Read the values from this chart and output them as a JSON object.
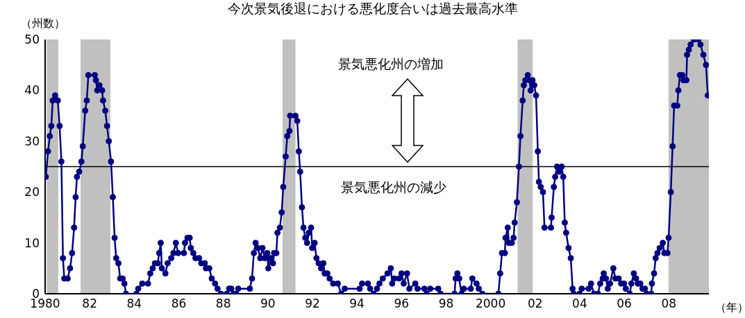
{
  "chart_data": {
    "type": "line",
    "title": "今次景気後退における悪化度合いは過去最高水準",
    "ylabel": "（州数）",
    "xlabel": "（年）",
    "annotations": [
      "景気悪化州の増加",
      "景気悪化州の減少"
    ],
    "x": [
      1980.03,
      1980.13,
      1980.21,
      1980.28,
      1980.34,
      1980.45,
      1980.57,
      1980.65,
      1980.73,
      1980.8,
      1980.86,
      1981.01,
      1981.12,
      1981.21,
      1981.3,
      1981.37,
      1981.43,
      1981.53,
      1981.63,
      1981.69,
      1981.8,
      1981.87,
      1981.94,
      1982.23,
      1982.28,
      1982.34,
      1982.44,
      1982.56,
      1982.6,
      1982.7,
      1982.78,
      1982.86,
      1982.96,
      1983.04,
      1983.12,
      1983.19,
      1983.29,
      1983.37,
      1983.48,
      1983.56,
      1983.63,
      1984.1,
      1984.18,
      1984.36,
      1984.62,
      1984.72,
      1984.83,
      1984.93,
      1985.06,
      1985.12,
      1985.19,
      1985.24,
      1985.4,
      1985.5,
      1985.66,
      1985.76,
      1985.87,
      1985.97,
      1986.23,
      1986.28,
      1986.39,
      1986.49,
      1986.54,
      1986.65,
      1986.75,
      1986.91,
      1987.01,
      1987.17,
      1987.22,
      1987.37,
      1987.48,
      1987.63,
      1987.74,
      1987.89,
      1988.15,
      1988.26,
      1988.36,
      1988.46,
      1988.57,
      1988.67,
      1989.19,
      1989.29,
      1989.37,
      1989.45,
      1989.55,
      1989.66,
      1989.76,
      1989.86,
      1989.97,
      1990.02,
      1990.12,
      1990.23,
      1990.28,
      1990.38,
      1990.43,
      1990.54,
      1990.62,
      1990.69,
      1990.8,
      1990.87,
      1990.97,
      1991.0,
      1991.24,
      1991.32,
      1991.39,
      1991.45,
      1991.53,
      1991.6,
      1991.68,
      1991.76,
      1991.84,
      1991.94,
      1991.99,
      1992.1,
      1992.18,
      1992.28,
      1992.39,
      1992.49,
      1992.55,
      1992.67,
      1992.77,
      1992.93,
      1993.14,
      1993.29,
      1993.45,
      1994.12,
      1994.23,
      1994.49,
      1994.59,
      1994.75,
      1994.9,
      1995.01,
      1995.16,
      1995.37,
      1995.52,
      1995.58,
      1995.68,
      1995.89,
      1996.0,
      1996.1,
      1996.25,
      1996.35,
      1996.62,
      1996.72,
      1997.03,
      1997.13,
      1997.29,
      1997.65,
      1997.75,
      1998.38,
      1998.43,
      1998.51,
      1998.59,
      1998.69,
      1998.8,
      1999.11,
      1999.18,
      1999.37,
      1999.47,
      1999.63,
      2000.35,
      2000.43,
      2000.51,
      2000.64,
      2000.67,
      2000.77,
      2000.82,
      2000.95,
      2001.03,
      2001.08,
      2001.18,
      2001.27,
      2001.34,
      2001.44,
      2001.49,
      2001.56,
      2001.67,
      2001.75,
      2001.8,
      2001.88,
      2001.96,
      2002.04,
      2002.12,
      2002.17,
      2002.25,
      2002.35,
      2002.42,
      2002.71,
      2002.74,
      2002.84,
      2002.9,
      2002.98,
      2003.08,
      2003.19,
      2003.26,
      2003.33,
      2003.39,
      2003.5,
      2003.6,
      2003.68,
      2003.73,
      2003.99,
      2004.09,
      2004.4,
      2004.51,
      2004.64,
      2004.82,
      2004.92,
      2005.03,
      2005.08,
      2005.18,
      2005.26,
      2005.36,
      2005.51,
      2005.6,
      2005.75,
      2005.86,
      2005.99,
      2006.07,
      2006.25,
      2006.32,
      2006.43,
      2006.53,
      2006.61,
      2006.72,
      2006.82,
      2006.93,
      2007.0,
      2007.21,
      2007.24,
      2007.34,
      2007.41,
      2007.49,
      2007.59,
      2007.73,
      2007.8,
      2007.94,
      2007.99,
      2008.09,
      2008.17,
      2008.24,
      2008.38,
      2008.43,
      2008.5,
      2008.61,
      2008.66,
      2008.79,
      2008.82,
      2008.9,
      2008.98,
      2009.13,
      2009.33,
      2009.42,
      2009.55,
      2009.67,
      2009.75
    ],
    "series": [
      {
        "color": "#000080",
        "values": [
          23,
          28,
          31,
          33,
          38,
          39,
          38,
          33,
          26,
          7,
          3,
          3,
          5,
          8,
          13,
          19,
          23,
          24,
          26,
          29,
          36,
          38,
          43,
          43,
          42,
          40,
          41,
          40,
          38,
          36,
          33,
          30,
          26,
          19,
          11,
          7,
          6,
          3,
          3,
          2,
          0,
          0,
          1,
          2,
          2,
          4,
          5,
          6,
          6,
          8,
          10,
          5,
          4,
          6,
          7,
          8,
          10,
          8,
          8,
          10,
          11,
          11,
          9,
          8,
          7,
          7,
          6,
          6,
          5,
          5,
          3,
          2,
          1,
          0,
          0,
          1,
          1,
          0,
          0,
          1,
          1,
          3,
          8,
          10,
          9,
          7,
          9,
          7,
          8,
          5,
          7,
          6,
          8,
          8,
          12,
          13,
          16,
          21,
          27,
          31,
          32,
          35,
          35,
          34,
          28,
          24,
          17,
          13,
          11,
          10,
          12,
          13,
          9,
          10,
          7,
          6,
          5,
          6,
          4,
          4,
          3,
          2,
          2,
          0,
          1,
          1,
          2,
          2,
          1,
          0,
          1,
          2,
          3,
          4,
          5,
          2,
          3,
          3,
          4,
          2,
          4,
          1,
          2,
          1,
          1,
          0,
          1,
          1,
          0,
          0,
          3,
          4,
          3,
          0,
          1,
          1,
          3,
          2,
          1,
          0,
          0,
          4,
          8,
          8,
          11,
          13,
          10,
          10,
          11,
          14,
          18,
          25,
          31,
          38,
          41,
          42,
          43,
          42,
          40,
          42,
          41,
          39,
          28,
          22,
          21,
          20,
          13,
          13,
          15,
          21,
          23,
          25,
          24,
          25,
          23,
          14,
          12,
          9,
          7,
          1,
          0,
          0,
          1,
          1,
          2,
          0,
          0,
          2,
          3,
          4,
          3,
          1,
          2,
          5,
          3,
          3,
          2,
          2,
          1,
          0,
          2,
          4,
          3,
          2,
          2,
          1,
          1,
          0,
          0,
          2,
          4,
          7,
          8,
          9,
          10,
          8,
          8,
          11,
          20,
          29,
          37,
          37,
          40,
          43,
          43,
          42,
          42,
          47,
          48,
          49,
          50,
          50,
          49,
          47,
          45,
          39
        ]
      }
    ],
    "xlim": [
      1980,
      2009.8
    ],
    "xticks": [
      {
        "value": 1980,
        "label": "1980"
      },
      {
        "value": 1982,
        "label": "82"
      },
      {
        "value": 1984,
        "label": "84"
      },
      {
        "value": 1986,
        "label": "86"
      },
      {
        "value": 1988,
        "label": "88"
      },
      {
        "value": 1990,
        "label": "90"
      },
      {
        "value": 1992,
        "label": "92"
      },
      {
        "value": 1994,
        "label": "94"
      },
      {
        "value": 1996,
        "label": "96"
      },
      {
        "value": 1998,
        "label": "98"
      },
      {
        "value": 2000,
        "label": "2000"
      },
      {
        "value": 2002,
        "label": "02"
      },
      {
        "value": 2004,
        "label": "04"
      },
      {
        "value": 2006,
        "label": "06"
      },
      {
        "value": 2008,
        "label": "08"
      }
    ],
    "ylim": [
      0,
      50
    ],
    "yticks": [
      0,
      10,
      20,
      30,
      40,
      50
    ],
    "marker": "circle",
    "grid": false,
    "legend": false,
    "ref_lines": [
      {
        "axis": "y",
        "value": 25,
        "color": "#000000"
      }
    ],
    "bands": [
      {
        "axis": "x",
        "from": 1980.07,
        "to": 1980.59,
        "color": "#c0c0c0"
      },
      {
        "axis": "x",
        "from": 1981.59,
        "to": 1982.93,
        "color": "#c0c0c0"
      },
      {
        "axis": "x",
        "from": 1990.66,
        "to": 1991.24,
        "color": "#c0c0c0"
      },
      {
        "axis": "x",
        "from": 2001.21,
        "to": 2001.89,
        "color": "#c0c0c0"
      },
      {
        "axis": "x",
        "from": 2007.99,
        "to": 2009.8,
        "color": "#c0c0c0"
      }
    ]
  }
}
